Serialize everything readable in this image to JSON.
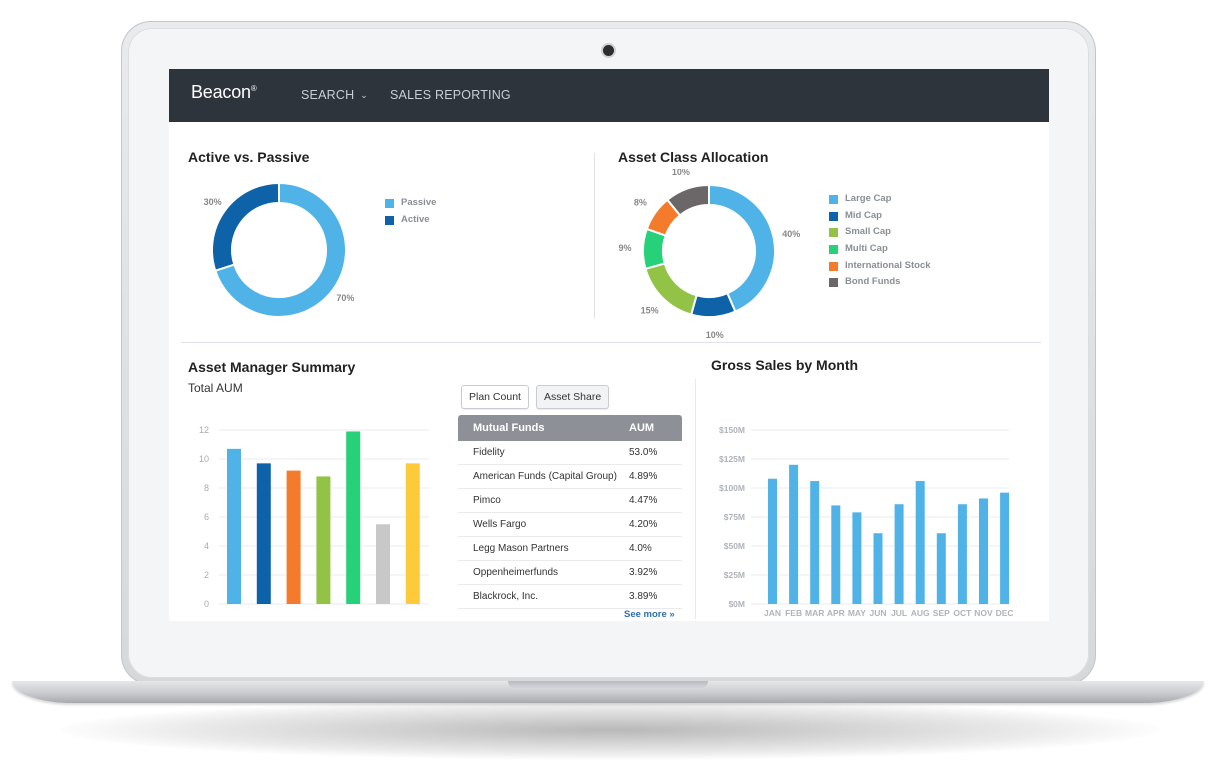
{
  "nav": {
    "logo": "Beacon",
    "logo_mark": "®",
    "search_label": "SEARCH",
    "search_chevron": "⌄",
    "reporting_label": "SALES REPORTING"
  },
  "active_passive": {
    "title": "Active vs. Passive",
    "legend": [
      {
        "label": "Passive",
        "color": "#4fb3e8"
      },
      {
        "label": "Active",
        "color": "#0e63a8"
      }
    ],
    "chart_data": {
      "type": "pie",
      "donut": true,
      "categories": [
        "Passive",
        "Active"
      ],
      "values": [
        70,
        30
      ],
      "labels": [
        "70%",
        "30%"
      ],
      "colors": [
        "#4fb3e8",
        "#0e63a8"
      ]
    }
  },
  "asset_class": {
    "title": "Asset Class Allocation",
    "legend": [
      {
        "label": "Large Cap",
        "color": "#4fb3e8"
      },
      {
        "label": "Mid Cap",
        "color": "#0e63a8"
      },
      {
        "label": "Small Cap",
        "color": "#93c346"
      },
      {
        "label": "Multi Cap",
        "color": "#27d17a"
      },
      {
        "label": "International Stock",
        "color": "#f57b2c"
      },
      {
        "label": "Bond Funds",
        "color": "#6b6668"
      }
    ],
    "chart_data": {
      "type": "pie",
      "donut": true,
      "categories": [
        "Large Cap",
        "Mid Cap",
        "Small Cap",
        "Multi Cap",
        "International Stock",
        "Bond Funds"
      ],
      "values": [
        40,
        10,
        15,
        9,
        8,
        10
      ],
      "labels": [
        "40%",
        "10%",
        "15%",
        "9%",
        "8%",
        "10%"
      ],
      "colors": [
        "#4fb3e8",
        "#0e63a8",
        "#93c346",
        "#27d17a",
        "#f57b2c",
        "#6b6668"
      ]
    }
  },
  "asset_manager": {
    "title": "Asset Manager Summary",
    "subtitle": "Total AUM",
    "chart_data": {
      "type": "bar",
      "values": [
        10.7,
        9.7,
        9.2,
        8.8,
        11.9,
        5.5,
        9.7
      ],
      "colors": [
        "#4fb3e8",
        "#0e63a8",
        "#f57b2c",
        "#93c346",
        "#27d17a",
        "#c8c8c8",
        "#fdcb3a"
      ],
      "ylim": [
        0,
        12
      ],
      "yticks": [
        0,
        2,
        4,
        6,
        8,
        10,
        12
      ],
      "grid": true
    },
    "buttons": {
      "plan_count": "Plan Count",
      "asset_share": "Asset Share"
    },
    "table": {
      "headers": [
        "Mutual Funds",
        "AUM"
      ],
      "rows": [
        [
          "Fidelity",
          "53.0%"
        ],
        [
          "American Funds (Capital Group)",
          "4.89%"
        ],
        [
          "Pimco",
          "4.47%"
        ],
        [
          "Wells Fargo",
          "4.20%"
        ],
        [
          "Legg Mason Partners",
          "4.0%"
        ],
        [
          "Oppenheimerfunds",
          "3.92%"
        ],
        [
          "Blackrock, Inc.",
          "3.89%"
        ]
      ]
    },
    "see_more": "See more »"
  },
  "gross_sales": {
    "title": "Gross Sales by Month",
    "chart_data": {
      "type": "bar",
      "categories": [
        "JAN",
        "FEB",
        "MAR",
        "APR",
        "MAY",
        "JUN",
        "JUL",
        "AUG",
        "SEP",
        "OCT",
        "NOV",
        "DEC"
      ],
      "values": [
        108,
        120,
        106,
        85,
        79,
        61,
        86,
        106,
        61,
        86,
        91,
        96
      ],
      "color": "#4fb3e8",
      "ylim": [
        0,
        150
      ],
      "yticks": [
        0,
        25,
        50,
        75,
        100,
        125,
        150
      ],
      "ytick_labels": [
        "$0M",
        "$25M",
        "$50M",
        "$75M",
        "$100M",
        "$125M",
        "$150M"
      ],
      "grid": true
    }
  }
}
